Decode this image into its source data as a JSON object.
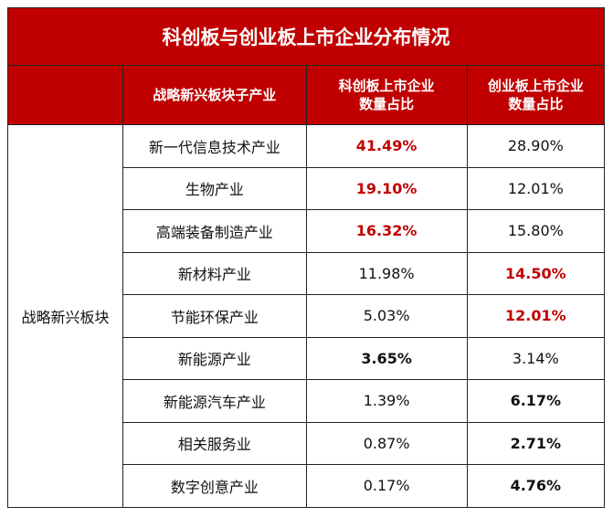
{
  "title": "科创板与创业板上市企业分布情况",
  "headers": [
    "",
    "战略新兴板块子产业",
    "科创板上市企业\n数量占比",
    "创业板上市企业\n数量占比"
  ],
  "header_lines": {
    "h2a": "科创板上市企业",
    "h2b": "数量占比",
    "h3a": "创业板上市企业",
    "h3b": "数量占比"
  },
  "category": "战略新兴板块",
  "colors": {
    "accent": "#c00000"
  },
  "rows": [
    {
      "industry": "新一代信息技术产业",
      "star": "41.49%",
      "gem": "28.90%",
      "star_style": "red",
      "gem_style": ""
    },
    {
      "industry": "生物产业",
      "star": "19.10%",
      "gem": "12.01%",
      "star_style": "red",
      "gem_style": ""
    },
    {
      "industry": "高端装备制造产业",
      "star": "16.32%",
      "gem": "15.80%",
      "star_style": "red",
      "gem_style": ""
    },
    {
      "industry": "新材料产业",
      "star": "11.98%",
      "gem": "14.50%",
      "star_style": "",
      "gem_style": "red"
    },
    {
      "industry": "节能环保产业",
      "star": "5.03%",
      "gem": "12.01%",
      "star_style": "",
      "gem_style": "red"
    },
    {
      "industry": "新能源产业",
      "star": "3.65%",
      "gem": "3.14%",
      "star_style": "bold",
      "gem_style": ""
    },
    {
      "industry": "新能源汽车产业",
      "star": "1.39%",
      "gem": "6.17%",
      "star_style": "",
      "gem_style": "bold"
    },
    {
      "industry": "相关服务业",
      "star": "0.87%",
      "gem": "2.71%",
      "star_style": "",
      "gem_style": "bold"
    },
    {
      "industry": "数字创意产业",
      "star": "0.17%",
      "gem": "4.76%",
      "star_style": "",
      "gem_style": "bold"
    }
  ]
}
